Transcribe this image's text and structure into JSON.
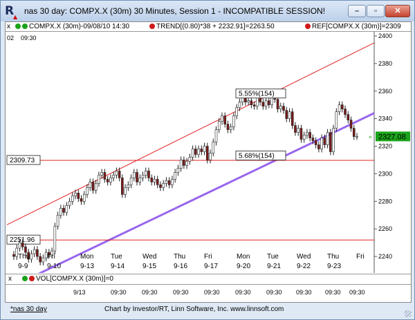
{
  "window": {
    "title": "nas 30 day: COMPX.X (30m) 30 Minutes, Session 1 - INCOMPATIBLE SESSION!",
    "minimize_label": "–",
    "maximize_label": "▫",
    "close_label": "✕"
  },
  "legend": {
    "close_glyph": "x",
    "symbol": "COMPX.X (30m)-09/08/10 14:30",
    "trend": "TREND[(0.80)*38 + 2232.91]=2263.50",
    "ref": "REF[COMPX.X (30m)]=2309"
  },
  "top_left_label": "02",
  "top_time_label": "09:30",
  "chart_data": {
    "type": "candlestick",
    "y_ticks": [
      "2400",
      "2380",
      "2360",
      "2340",
      "2320",
      "2300",
      "2280",
      "2260",
      "2240"
    ],
    "ylim": [
      2228,
      2403
    ],
    "last_price": "2327.08",
    "horizontal_lines": [
      {
        "label": "2309.73",
        "value": 2309.73
      },
      {
        "label": "2251.96",
        "value": 2251.96
      }
    ],
    "annotations": [
      {
        "text": "5.55%(154)"
      },
      {
        "text": "5.68%(154)"
      }
    ],
    "day_labels": [
      {
        "day": "Thu",
        "date": "9-9"
      },
      {
        "day": "Fri",
        "date": "9-10"
      },
      {
        "day": "Mon",
        "date": "9-13"
      },
      {
        "day": "Tue",
        "date": "9-14"
      },
      {
        "day": "Wed",
        "date": "9-15"
      },
      {
        "day": "Thu",
        "date": "9-16"
      },
      {
        "day": "Fri",
        "date": "9-17"
      },
      {
        "day": "Mon",
        "date": "9-20"
      },
      {
        "day": "Tue",
        "date": "9-21"
      },
      {
        "day": "Wed",
        "date": "9-22"
      },
      {
        "day": "Thu",
        "date": "9-23"
      },
      {
        "day": "Fri",
        "date": ""
      }
    ],
    "closes": [
      2240,
      2246,
      2250,
      2247,
      2243,
      2238,
      2242,
      2245,
      2240,
      2236,
      2239,
      2243,
      2241,
      2244,
      2262,
      2270,
      2275,
      2272,
      2277,
      2280,
      2284,
      2286,
      2282,
      2280,
      2285,
      2290,
      2294,
      2288,
      2293,
      2299,
      2301,
      2296,
      2294,
      2297,
      2299,
      2302,
      2297,
      2285,
      2290,
      2292,
      2297,
      2301,
      2294,
      2297,
      2299,
      2302,
      2297,
      2294,
      2296,
      2292,
      2290,
      2293,
      2295,
      2292,
      2296,
      2301,
      2304,
      2310,
      2306,
      2309,
      2312,
      2318,
      2314,
      2318,
      2316,
      2320,
      2310,
      2315,
      2323,
      2332,
      2338,
      2342,
      2336,
      2332,
      2334,
      2342,
      2348,
      2352,
      2356,
      2352,
      2353,
      2350,
      2349,
      2356,
      2352,
      2349,
      2353,
      2350,
      2356,
      2354,
      2347,
      2349,
      2346,
      2340,
      2345,
      2335,
      2330,
      2333,
      2325,
      2328,
      2330,
      2326,
      2324,
      2321,
      2318,
      2326,
      2321,
      2330,
      2316,
      2333,
      2345,
      2350,
      2347,
      2343,
      2339,
      2333,
      2327,
      2327.08
    ],
    "channel": {
      "upper_start": 2263,
      "upper_end": 2395,
      "lower_start": 2226,
      "lower_end": 2344
    }
  },
  "volume": {
    "label": "VOL[COMPX.X (30m)]=0"
  },
  "time_axis": {
    "labels": [
      "9/13",
      "09:30",
      "09:30",
      "09:30",
      "09:30",
      "09:30",
      "09:30",
      "09:30",
      "09:30",
      "09:30",
      "09:30"
    ]
  },
  "status": {
    "link": "*nas 30 day",
    "credit": "Chart by Investor/RT, Linn Software, Inc. www.linnsoft.com"
  },
  "colors": {
    "up_candle": "#ffffff",
    "down_candle": "#7a1a1a",
    "channel_upper": "#e02020",
    "channel_lower": "#9966ee",
    "hline": "#e02020",
    "last_price_bg": "#1aa31a"
  }
}
